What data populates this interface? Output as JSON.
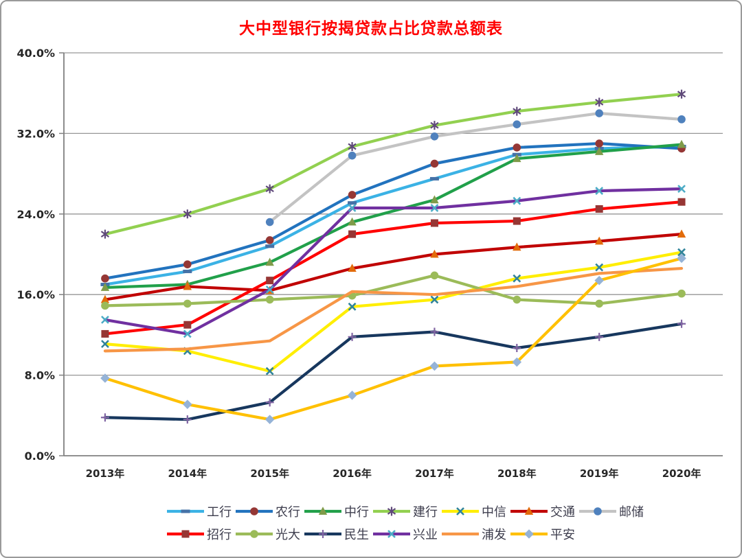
{
  "window": {
    "background": "#ffffff",
    "frame_border_color": "#9a9a9a"
  },
  "chart_data": {
    "type": "line",
    "title": "大中型银行按揭贷款占比贷款总额表",
    "title_color": "#FF0000",
    "grid": true,
    "gridline_color": "#969696",
    "axis_color": "#808080",
    "legend_position": "bottom",
    "categories": [
      "2013年",
      "2014年",
      "2015年",
      "2016年",
      "2017年",
      "2018年",
      "2019年",
      "2020年"
    ],
    "y_axis": {
      "min": 0,
      "max": 40,
      "step": 8,
      "tick_labels": [
        "0.0%",
        "8.0%",
        "16.0%",
        "24.0%",
        "32.0%",
        "40.0%"
      ]
    },
    "legend_rows": [
      [
        "工行",
        "农行",
        "中行",
        "建行",
        "中信",
        "交通",
        "邮储"
      ],
      [
        "招行",
        "光大",
        "民生",
        "兴业",
        "浦发",
        "平安"
      ]
    ],
    "series": [
      {
        "id": "icbc",
        "name": "工行",
        "line_color": "#3BB2E5",
        "marker": "dash",
        "marker_color": "#4572A7",
        "values": [
          17.0,
          18.3,
          20.8,
          25.1,
          27.5,
          29.9,
          30.5,
          30.7
        ]
      },
      {
        "id": "abc",
        "name": "农行",
        "line_color": "#2273BE",
        "marker": "circle",
        "marker_color": "#953735",
        "values": [
          17.6,
          19.0,
          21.4,
          25.9,
          29.0,
          30.6,
          31.0,
          30.5
        ]
      },
      {
        "id": "boc",
        "name": "中行",
        "line_color": "#21A04A",
        "marker": "triangle",
        "marker_color": "#7F9B49",
        "values": [
          16.7,
          17.0,
          19.2,
          23.2,
          25.4,
          29.5,
          30.2,
          30.9
        ]
      },
      {
        "id": "ccb",
        "name": "建行",
        "line_color": "#92D050",
        "marker": "asterisk",
        "marker_color": "#5F497A",
        "values": [
          22.0,
          24.0,
          26.5,
          30.7,
          32.8,
          34.2,
          35.1,
          35.9
        ]
      },
      {
        "id": "citic",
        "name": "中信",
        "line_color": "#FFEE00",
        "marker": "x",
        "marker_color": "#31849B",
        "values": [
          11.1,
          10.4,
          8.4,
          14.8,
          15.5,
          17.6,
          18.7,
          20.2
        ]
      },
      {
        "id": "bocom",
        "name": "交通",
        "line_color": "#C00000",
        "marker": "triangle",
        "marker_color": "#E26B0A",
        "values": [
          15.5,
          16.8,
          16.4,
          18.6,
          20.0,
          20.7,
          21.3,
          22.0
        ]
      },
      {
        "id": "psbc",
        "name": "邮储",
        "line_color": "#C3C3C3",
        "marker": "circle",
        "marker_color": "#4F81BD",
        "values": [
          null,
          null,
          23.2,
          29.8,
          31.7,
          32.9,
          34.0,
          33.4
        ]
      },
      {
        "id": "cmb",
        "name": "招行",
        "line_color": "#FF0000",
        "marker": "square",
        "marker_color": "#963634",
        "values": [
          12.1,
          13.0,
          17.4,
          22.0,
          23.1,
          23.3,
          24.5,
          25.2
        ]
      },
      {
        "id": "ceb",
        "name": "光大",
        "line_color": "#9BBB59",
        "marker": "circle",
        "marker_color": "#9BBB59",
        "values": [
          14.9,
          15.1,
          15.5,
          15.9,
          17.9,
          15.5,
          15.1,
          16.1
        ]
      },
      {
        "id": "minsheng",
        "name": "民生",
        "line_color": "#17375E",
        "marker": "plus",
        "marker_color": "#8064A2",
        "values": [
          3.8,
          3.6,
          5.3,
          11.8,
          12.3,
          10.7,
          11.8,
          13.1
        ]
      },
      {
        "id": "cib",
        "name": "兴业",
        "line_color": "#7030A0",
        "marker": "x",
        "marker_color": "#4BACC6",
        "values": [
          13.5,
          12.1,
          16.5,
          24.6,
          24.6,
          25.3,
          26.3,
          26.5
        ]
      },
      {
        "id": "spdb",
        "name": "浦发",
        "line_color": "#F79646",
        "marker": "none",
        "marker_color": "#F79646",
        "values": [
          10.4,
          10.6,
          11.4,
          16.3,
          16.0,
          16.8,
          18.1,
          18.6
        ]
      },
      {
        "id": "pingan",
        "name": "平安",
        "line_color": "#FFC000",
        "marker": "diamond",
        "marker_color": "#95B3D7",
        "values": [
          7.7,
          5.1,
          3.6,
          6.0,
          8.9,
          9.3,
          17.4,
          19.6
        ]
      }
    ]
  }
}
